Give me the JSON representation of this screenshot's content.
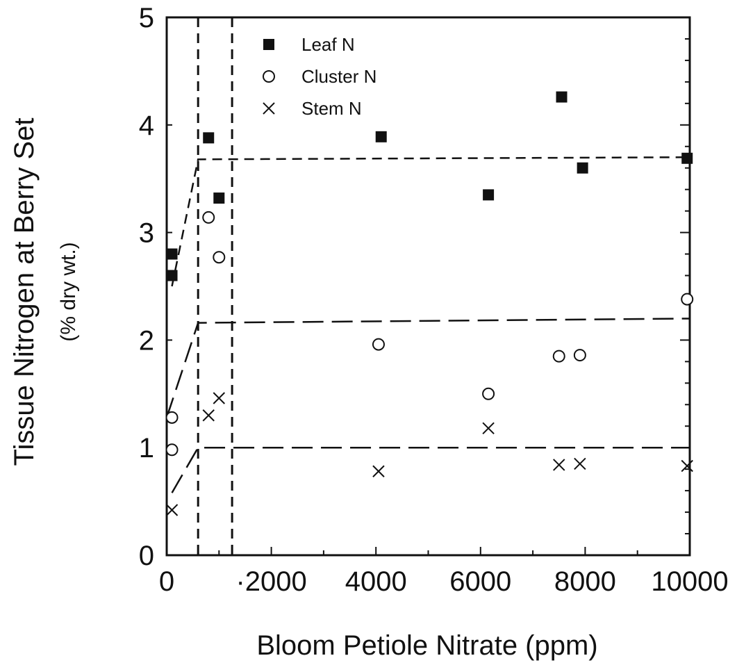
{
  "chart_data": {
    "type": "scatter",
    "title": "",
    "xlabel": "Bloom Petiole Nitrate (ppm)",
    "ylabel": "Tissue Nitrogen at Berry Set",
    "ylabel_sub": "(% dry wt.)",
    "xlim": [
      0,
      10000
    ],
    "ylim": [
      0,
      5
    ],
    "x_ticks": [
      0,
      2000,
      4000,
      6000,
      8000,
      10000
    ],
    "x_tick_labels": [
      "0",
      "·2000",
      "4000",
      "6000",
      "8000",
      "10000"
    ],
    "y_ticks": [
      0,
      1,
      2,
      3,
      4,
      5
    ],
    "y_tick_labels": [
      "0",
      "1",
      "2",
      "3",
      "4",
      "5"
    ],
    "grid": false,
    "legend_position": "top-left",
    "series": [
      {
        "name": "Leaf N",
        "marker": "filled-square",
        "points": [
          {
            "x": 100,
            "y": 2.8
          },
          {
            "x": 100,
            "y": 2.6
          },
          {
            "x": 800,
            "y": 3.88
          },
          {
            "x": 1000,
            "y": 3.32
          },
          {
            "x": 4100,
            "y": 3.89
          },
          {
            "x": 6150,
            "y": 3.35
          },
          {
            "x": 7550,
            "y": 4.26
          },
          {
            "x": 7950,
            "y": 3.6
          },
          {
            "x": 9950,
            "y": 3.69
          }
        ]
      },
      {
        "name": "Cluster N",
        "marker": "open-circle",
        "points": [
          {
            "x": 100,
            "y": 1.28
          },
          {
            "x": 100,
            "y": 0.98
          },
          {
            "x": 800,
            "y": 3.14
          },
          {
            "x": 1000,
            "y": 2.77
          },
          {
            "x": 4050,
            "y": 1.96
          },
          {
            "x": 6150,
            "y": 1.5
          },
          {
            "x": 7500,
            "y": 1.85
          },
          {
            "x": 7900,
            "y": 1.86
          },
          {
            "x": 9950,
            "y": 2.38
          }
        ]
      },
      {
        "name": "Stem N",
        "marker": "x",
        "points": [
          {
            "x": 100,
            "y": 0.42
          },
          {
            "x": 800,
            "y": 1.3
          },
          {
            "x": 1000,
            "y": 1.46
          },
          {
            "x": 4050,
            "y": 0.78
          },
          {
            "x": 6150,
            "y": 1.18
          },
          {
            "x": 7500,
            "y": 0.84
          },
          {
            "x": 7900,
            "y": 0.85
          },
          {
            "x": 9950,
            "y": 0.83
          }
        ]
      }
    ],
    "reference_lines": [
      {
        "orientation": "vertical",
        "x": 600,
        "style": "dashed"
      },
      {
        "orientation": "vertical",
        "x": 1250,
        "style": "dashed"
      }
    ],
    "fit_lines": [
      {
        "style": "dashed",
        "points": [
          [
            100,
            2.5
          ],
          [
            600,
            3.68
          ],
          [
            10000,
            3.7
          ]
        ]
      },
      {
        "style": "long-dash",
        "points": [
          [
            0,
            1.28
          ],
          [
            600,
            2.16
          ],
          [
            10000,
            2.2
          ]
        ]
      },
      {
        "style": "long-dash",
        "points": [
          [
            100,
            0.58
          ],
          [
            600,
            1.0
          ],
          [
            10000,
            1.0
          ]
        ]
      }
    ],
    "colors": {
      "ink": "#111111",
      "background": "#ffffff"
    }
  }
}
